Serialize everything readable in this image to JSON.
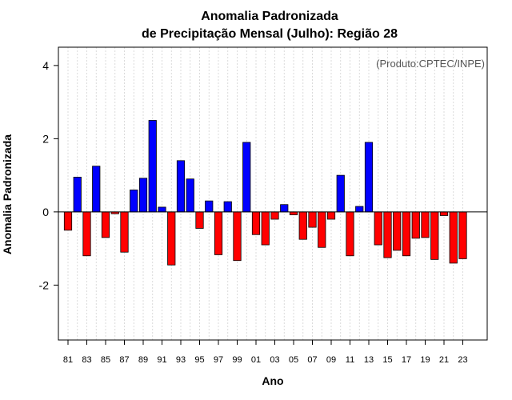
{
  "chart_data": {
    "type": "bar",
    "title_line1": "Anomalia Padronizada",
    "title_line2": "de Precipitação Mensal (Julho): Região 28",
    "xlabel": "Ano",
    "ylabel": "Anomalia Padronizada",
    "credit": "(Produto:CPTEC/INPE)",
    "ylim": [
      -3.5,
      4.5
    ],
    "yticks": [
      -2,
      0,
      2,
      4
    ],
    "yticklabels": [
      "-2",
      "0",
      "2",
      "4"
    ],
    "years": [
      "81",
      "82",
      "83",
      "84",
      "85",
      "86",
      "87",
      "88",
      "89",
      "90",
      "91",
      "92",
      "93",
      "94",
      "95",
      "96",
      "97",
      "98",
      "99",
      "00",
      "01",
      "02",
      "03",
      "04",
      "05",
      "06",
      "07",
      "08",
      "09",
      "10",
      "11",
      "12",
      "13",
      "14",
      "15",
      "16",
      "17",
      "18",
      "19",
      "20",
      "21",
      "22",
      "23"
    ],
    "xticklabels": [
      "81",
      "83",
      "85",
      "87",
      "89",
      "91",
      "93",
      "95",
      "97",
      "99",
      "01",
      "03",
      "05",
      "07",
      "09",
      "11",
      "13",
      "15",
      "17",
      "19",
      "21",
      "23"
    ],
    "values": [
      -0.5,
      0.95,
      -1.2,
      1.25,
      -0.7,
      -0.05,
      -1.1,
      0.6,
      0.92,
      2.5,
      0.13,
      -1.45,
      1.4,
      0.9,
      -0.45,
      0.3,
      -1.17,
      0.28,
      -1.33,
      1.9,
      -0.62,
      -0.9,
      -0.2,
      0.2,
      -0.08,
      -0.75,
      -0.42,
      -0.97,
      -0.2,
      1.0,
      -1.2,
      0.15,
      1.9,
      -0.9,
      -1.25,
      -1.05,
      -1.2,
      -0.72,
      -0.7,
      -1.3,
      -0.1,
      -1.4,
      -1.28
    ],
    "colors": {
      "positive": "#0000ff",
      "negative": "#ff0000",
      "outline": "#000000",
      "grid": "#d3d3d3"
    }
  }
}
